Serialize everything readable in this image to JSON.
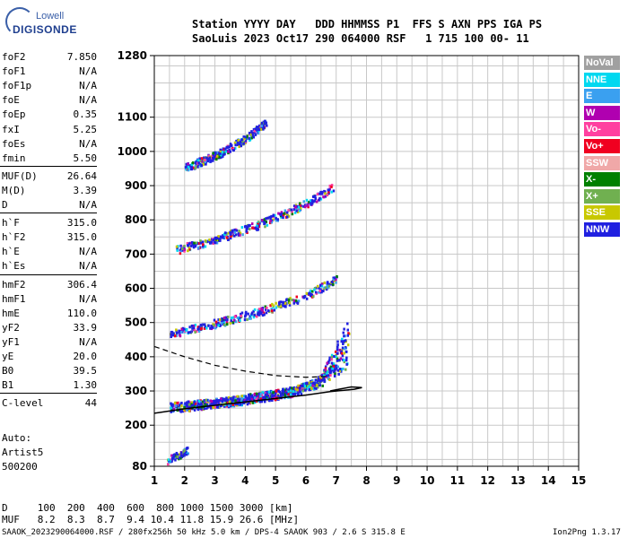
{
  "logo": {
    "lowell": "Lowell",
    "digisonde": "DIGISONDE"
  },
  "header": {
    "line1": "Station YYYY DAY   DDD HHMMSS P1  FFS S AXN PPS IGA PS",
    "line2": "SaoLuis 2023 Oct17 290 064000 RSF   1 715 100 00- 11"
  },
  "params": [
    {
      "k": "foF2",
      "v": "7.850"
    },
    {
      "k": "foF1",
      "v": "N/A"
    },
    {
      "k": "foF1p",
      "v": "N/A"
    },
    {
      "k": "foE",
      "v": "N/A"
    },
    {
      "k": "foEp",
      "v": "0.35"
    },
    {
      "k": "fxI",
      "v": "5.25"
    },
    {
      "k": "foEs",
      "v": "N/A"
    },
    {
      "k": "fmin",
      "v": "5.50"
    },
    {
      "k": "MUF(D)",
      "v": "26.64"
    },
    {
      "k": "M(D)",
      "v": "3.39"
    },
    {
      "k": "D",
      "v": "N/A"
    },
    {
      "k": "h`F",
      "v": "315.0"
    },
    {
      "k": "h`F2",
      "v": "315.0"
    },
    {
      "k": "h`E",
      "v": "N/A"
    },
    {
      "k": "h`Es",
      "v": "N/A"
    },
    {
      "k": "hmF2",
      "v": "306.4"
    },
    {
      "k": "hmF1",
      "v": "N/A"
    },
    {
      "k": "hmE",
      "v": "110.0"
    },
    {
      "k": "yF2",
      "v": "33.9"
    },
    {
      "k": "yF1",
      "v": "N/A"
    },
    {
      "k": "yE",
      "v": "20.0"
    },
    {
      "k": "B0",
      "v": "39.5"
    },
    {
      "k": "B1",
      "v": "1.30"
    },
    {
      "k": "C-level",
      "v": "44"
    }
  ],
  "auto": {
    "l1": "Auto:",
    "l2": "Artist5",
    "l3": "500200"
  },
  "legend": [
    {
      "name": "NoVal",
      "color": "#a0a0a0"
    },
    {
      "name": "NNE",
      "color": "#00d8f0"
    },
    {
      "name": "E",
      "color": "#3aa0f0"
    },
    {
      "name": "W",
      "color": "#b000b0"
    },
    {
      "name": "Vo-",
      "color": "#ff40a0"
    },
    {
      "name": "Vo+",
      "color": "#f00020"
    },
    {
      "name": "SSW",
      "color": "#f0a8a8"
    },
    {
      "name": "X-",
      "color": "#008000"
    },
    {
      "name": "X+",
      "color": "#70b050"
    },
    {
      "name": "SSE",
      "color": "#c8c800"
    },
    {
      "name": "NNW",
      "color": "#2020e0"
    }
  ],
  "footer": {
    "d_row": "D     100  200  400  600  800 1000 1500 3000 [km]",
    "muf_row": "MUF   8.2  8.3  8.7  9.4 10.4 11.8 15.9 26.6 [MHz]",
    "file": "SAAOK_2023290064000.RSF / 280fx256h 50 kHz 5.0 km / DPS-4 SAAOK 903 / 2.6 S 315.8 E",
    "version": "Ion2Png 1.3.17"
  },
  "chart_data": {
    "type": "scatter",
    "xlim": [
      1,
      15
    ],
    "ylim": [
      80,
      1280
    ],
    "x_ticks": [
      1,
      2,
      3,
      4,
      5,
      6,
      7,
      8,
      9,
      10,
      11,
      12,
      13,
      14,
      15
    ],
    "y_ticks": [
      80,
      200,
      300,
      400,
      500,
      600,
      700,
      800,
      900,
      1000,
      1100,
      1280
    ],
    "grid": true,
    "traces": [
      {
        "name": "F2 trace",
        "x": [
          1.5,
          2.5,
          3.5,
          4.5,
          5.5,
          6.5,
          7.0,
          7.4
        ],
        "y": [
          255,
          262,
          272,
          285,
          300,
          330,
          360,
          375
        ]
      },
      {
        "name": "2nd hop",
        "x": [
          1.5,
          3.0,
          4.5,
          6.0,
          7.0
        ],
        "y": [
          470,
          500,
          535,
          580,
          630
        ]
      },
      {
        "name": "3rd hop",
        "x": [
          1.7,
          3.0,
          4.5,
          6.0,
          6.9
        ],
        "y": [
          715,
          745,
          790,
          850,
          900
        ]
      },
      {
        "name": "4th hop",
        "x": [
          2.0,
          3.0,
          4.0,
          4.7
        ],
        "y": [
          955,
          990,
          1040,
          1090
        ]
      },
      {
        "name": "E-region",
        "x": [
          1.4,
          1.6,
          1.8,
          2.1
        ],
        "y": [
          95,
          110,
          115,
          130
        ]
      }
    ],
    "profile_solid": {
      "x": [
        1.0,
        2.0,
        3.0,
        4.0,
        5.0,
        6.0,
        6.8,
        7.6,
        7.85,
        7.5,
        6.8
      ],
      "y": [
        235,
        248,
        258,
        268,
        278,
        288,
        298,
        305,
        310,
        312,
        300
      ]
    },
    "profile_dashed": {
      "x": [
        1.0,
        2.0,
        3.0,
        4.0,
        5.0,
        6.0,
        6.8
      ],
      "y": [
        430,
        400,
        375,
        358,
        345,
        340,
        343
      ]
    }
  }
}
